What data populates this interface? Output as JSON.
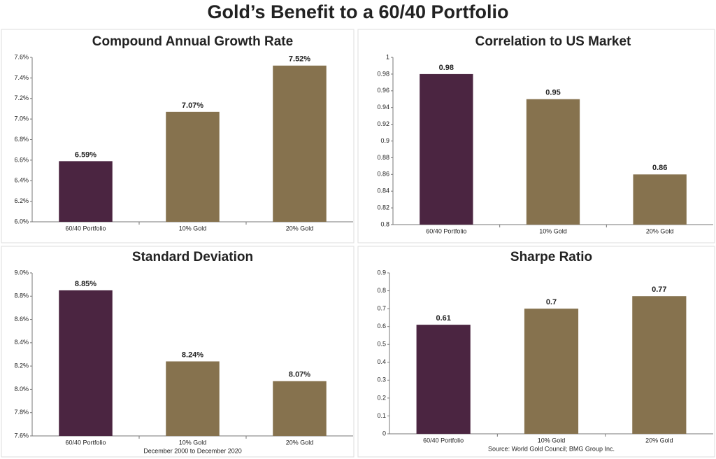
{
  "title": "Gold’s Benefit to a 60/40 Portfolio",
  "chart_data": [
    {
      "type": "bar",
      "title": "Compound Annual Growth Rate",
      "categories": [
        "60/40 Portfolio",
        "10% Gold",
        "20% Gold"
      ],
      "values": [
        6.59,
        7.07,
        7.52
      ],
      "value_labels": [
        "6.59%",
        "7.07%",
        "7.52%"
      ],
      "colors": [
        "#4b2541",
        "#86724e",
        "#86724e"
      ],
      "ylim": [
        6.0,
        7.6
      ],
      "yticks": [
        {
          "value": 6.0,
          "label": "6.0%"
        },
        {
          "value": 6.2,
          "label": "6.2%"
        },
        {
          "value": 6.4,
          "label": "6.4%"
        },
        {
          "value": 6.6,
          "label": "6.6%"
        },
        {
          "value": 6.8,
          "label": "6.8%"
        },
        {
          "value": 7.0,
          "label": "7.0%"
        },
        {
          "value": 7.2,
          "label": "7.2%"
        },
        {
          "value": 7.4,
          "label": "7.4%"
        },
        {
          "value": 7.6,
          "label": "7.6%"
        }
      ]
    },
    {
      "type": "bar",
      "title": "Correlation to US Market",
      "categories": [
        "60/40 Portfolio",
        "10% Gold",
        "20% Gold"
      ],
      "values": [
        0.98,
        0.95,
        0.86
      ],
      "colors": [
        "#4b2541",
        "#86724e",
        "#86724e"
      ],
      "ylim": [
        0.8,
        1
      ],
      "yticks": [
        0.8,
        0.82,
        0.84,
        0.86,
        0.88,
        0.9,
        0.92,
        0.94,
        0.96,
        0.98,
        1
      ]
    },
    {
      "type": "bar",
      "title": "Standard Deviation",
      "categories": [
        "60/40 Portfolio",
        "10% Gold",
        "20% Gold"
      ],
      "values": [
        8.85,
        8.24,
        8.07
      ],
      "value_labels": [
        "8.85%",
        "8.24%",
        "8.07%"
      ],
      "colors": [
        "#4b2541",
        "#86724e",
        "#86724e"
      ],
      "ylim": [
        7.6,
        9.0
      ],
      "yticks": [
        {
          "value": 7.6,
          "label": "7.6%"
        },
        {
          "value": 7.8,
          "label": "7.8%"
        },
        {
          "value": 8.0,
          "label": "8.0%"
        },
        {
          "value": 8.2,
          "label": "8.2%"
        },
        {
          "value": 8.4,
          "label": "8.4%"
        },
        {
          "value": 8.6,
          "label": "8.6%"
        },
        {
          "value": 8.8,
          "label": "8.8%"
        },
        {
          "value": 9.0,
          "label": "9.0%"
        }
      ],
      "note": "December 2000 to December 2020"
    },
    {
      "type": "bar",
      "title": "Sharpe Ratio",
      "categories": [
        "60/40 Portfolio",
        "10% Gold",
        "20% Gold"
      ],
      "values": [
        0.61,
        0.7,
        0.77
      ],
      "colors": [
        "#4b2541",
        "#86724e",
        "#86724e"
      ],
      "ylim": [
        0,
        0.9
      ],
      "yticks": [
        0,
        0.1,
        0.2,
        0.3,
        0.4,
        0.5,
        0.6,
        0.7,
        0.8,
        0.9
      ],
      "note": "Source: World Gold Council; BMG Group Inc."
    }
  ]
}
